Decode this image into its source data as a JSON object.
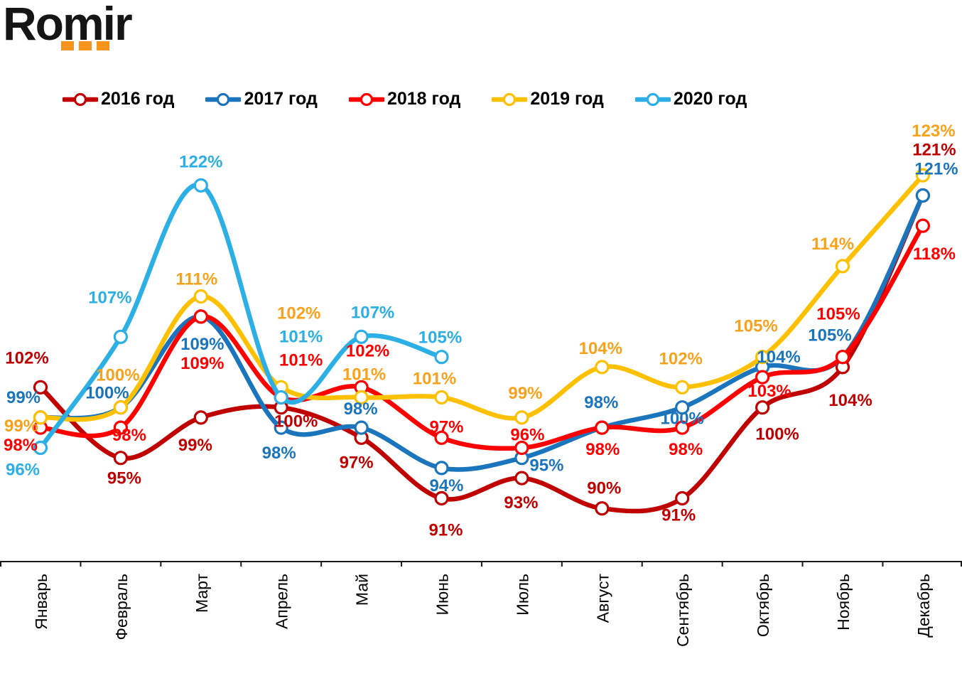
{
  "logo": {
    "text": "Romir"
  },
  "chart_data": {
    "type": "line",
    "title": "",
    "unit": "%",
    "value_format": "{v}%",
    "legend_position": "top",
    "grid": false,
    "smooth": true,
    "markers": "circle-open",
    "ylim": [
      88,
      126
    ],
    "categories": [
      "Январь",
      "Февраль",
      "Март",
      "Апрель",
      "Май",
      "Июнь",
      "Июль",
      "Август",
      "Сентябрь",
      "Октябрь",
      "Ноябрь",
      "Декабрь"
    ],
    "series": [
      {
        "name": "2016 год",
        "color": "#C00000",
        "label_color": "#C00000",
        "values": [
          102,
          95,
          99,
          100,
          97,
          91,
          93,
          90,
          91,
          100,
          104,
          121
        ],
        "label_offsets": [
          [
            -19,
            -42
          ],
          [
            5,
            28
          ],
          [
            -8,
            38
          ],
          [
            21,
            19
          ],
          [
            -7,
            34
          ],
          [
            6,
            44
          ],
          [
            -1,
            34
          ],
          [
            3,
            -29
          ],
          [
            -5,
            23
          ],
          [
            21,
            37
          ],
          [
            11,
            46
          ],
          [
            16,
            -65
          ]
        ]
      },
      {
        "name": "2017 год",
        "color": "#1B75BC",
        "label_color": "#1B75BC",
        "values": [
          99,
          100,
          109,
          98,
          98,
          94,
          95,
          98,
          100,
          104,
          105,
          121
        ],
        "label_offsets": [
          [
            -24,
            -29
          ],
          [
            -19,
            -21
          ],
          [
            2,
            38
          ],
          [
            -3,
            35
          ],
          [
            -1,
            -27
          ],
          [
            7,
            24
          ],
          [
            35,
            10
          ],
          [
            -1,
            -36
          ],
          [
            0,
            15
          ],
          [
            23,
            -15
          ],
          [
            -18,
            -31
          ],
          [
            19,
            -38
          ]
        ]
      },
      {
        "name": "2018 год",
        "color": "#FF0000",
        "label_color": "#FF0000",
        "values": [
          98,
          98,
          109,
          101,
          102,
          97,
          96,
          98,
          98,
          103,
          105,
          118
        ],
        "label_offsets": [
          [
            -28,
            24
          ],
          [
            12,
            10
          ],
          [
            2,
            65
          ],
          [
            28,
            -53
          ],
          [
            9,
            -52
          ],
          [
            7,
            -16
          ],
          [
            8,
            -19
          ],
          [
            1,
            30
          ],
          [
            5,
            30
          ],
          [
            10,
            19
          ],
          [
            -6,
            -61
          ],
          [
            16,
            39
          ]
        ]
      },
      {
        "name": "2019 год",
        "color": "#FFC000",
        "label_color": "#F9A11B",
        "values": [
          99,
          100,
          111,
          102,
          101,
          101,
          99,
          104,
          102,
          105,
          114,
          123
        ],
        "label_offsets": [
          [
            -27,
            11
          ],
          [
            -4,
            -46
          ],
          [
            -6,
            -25
          ],
          [
            25,
            -105
          ],
          [
            4,
            -33
          ],
          [
            -10,
            -27
          ],
          [
            5,
            -35
          ],
          [
            -2,
            -27
          ],
          [
            -2,
            -41
          ],
          [
            -9,
            -44
          ],
          [
            -14,
            -32
          ],
          [
            15,
            -63
          ]
        ]
      },
      {
        "name": "2020 год",
        "color": "#2BAFE5",
        "label_color": "#2BAFE5",
        "values": [
          96,
          107,
          122,
          101,
          107,
          105
        ],
        "label_offsets": [
          [
            -25,
            30
          ],
          [
            -15,
            -56
          ],
          [
            0,
            -34
          ],
          [
            28,
            -86
          ],
          [
            16,
            -35
          ],
          [
            -2,
            -28
          ]
        ]
      }
    ]
  }
}
